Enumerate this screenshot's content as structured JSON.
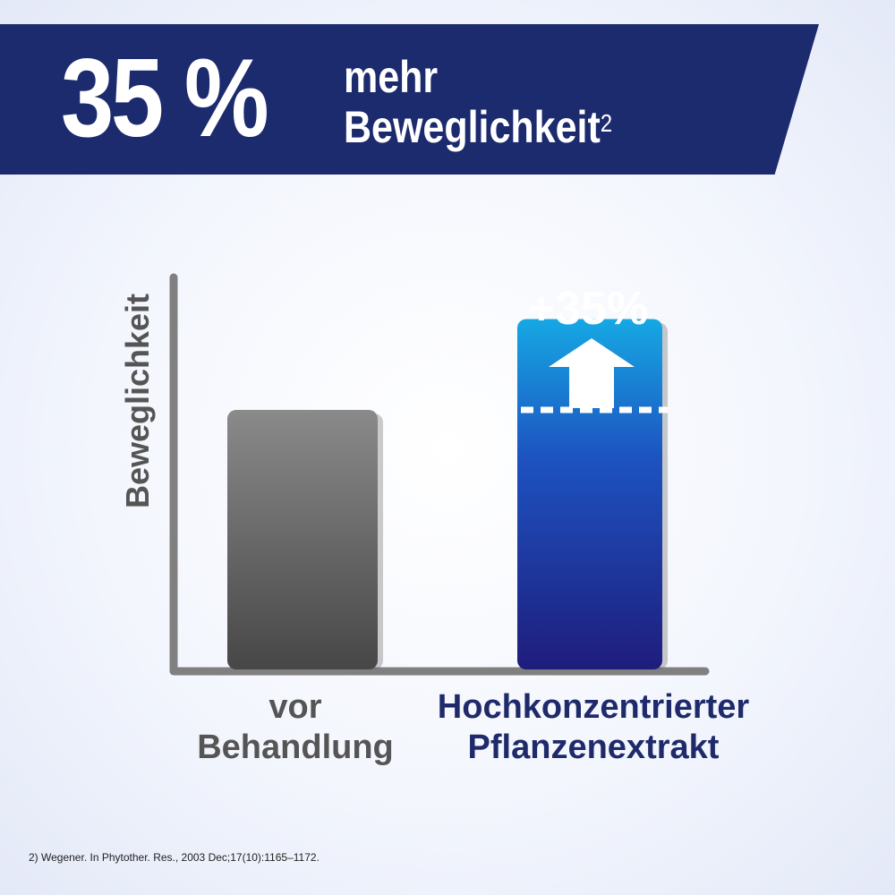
{
  "header": {
    "big_text": "35 %",
    "line1": "mehr",
    "line2": "Beweglichkeit",
    "superscript": "2"
  },
  "chart_data": {
    "type": "bar",
    "ylabel": "Beweglichkeit",
    "categories": [
      "vor Behandlung",
      "Hochkonzentrierter Pflanzenextrakt"
    ],
    "category_lines": [
      [
        "vor",
        "Behandlung"
      ],
      [
        "Hochkonzentrierter",
        "Pflanzenextrakt"
      ]
    ],
    "values": [
      100,
      135
    ],
    "ylim": [
      0,
      170
    ],
    "grid": false,
    "annotation": "+35%",
    "colors": {
      "axis": "#808080",
      "bar1_top": "#8a8a8a",
      "bar1_bottom": "#474747",
      "bar2_top": "#16a8e4",
      "bar2_mid": "#1d52c0",
      "bar2_bottom": "#1f1d7c",
      "label1": "#555555",
      "label2": "#1f2a6b",
      "ylabel": "#555555"
    }
  },
  "footnote": "2) Wegener. In Phytother. Res., 2003 Dec;17(10):1165–1172."
}
